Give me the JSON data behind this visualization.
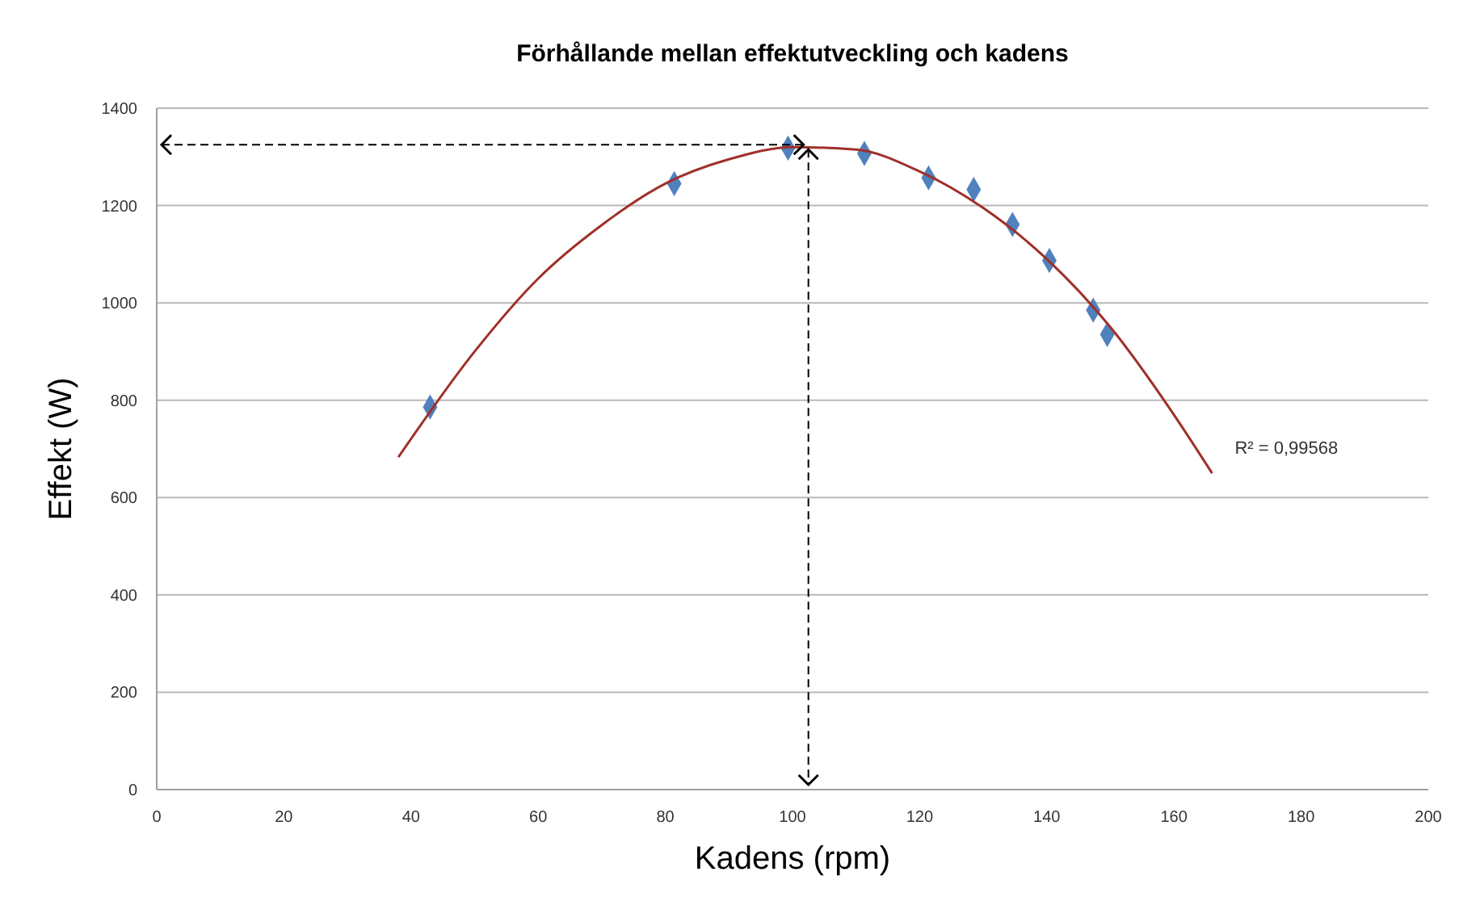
{
  "chart_data": {
    "type": "scatter",
    "title": "Förhållande mellan effektutveckling och kadens",
    "xlabel": "Kadens (rpm)",
    "ylabel": "Effekt (W)",
    "xlim": [
      0,
      200
    ],
    "xticks": [
      0,
      20,
      40,
      60,
      80,
      100,
      120,
      140,
      160,
      180,
      200
    ],
    "ylim": [
      0,
      1400
    ],
    "yticks": [
      0,
      200,
      400,
      600,
      800,
      1000,
      1200,
      1400
    ],
    "grid": "y",
    "series": [
      {
        "marker": "diamond",
        "color": "#4f81bd",
        "x": [
          43,
          81.4,
          99.3,
          111.3,
          121.4,
          128.5,
          134.6,
          140.4,
          147.3,
          149.5
        ],
        "values": [
          786,
          1245,
          1318,
          1307,
          1257,
          1233,
          1161,
          1087,
          985,
          935
        ]
      },
      {
        "type": "line",
        "marker": "none",
        "line_style": "solid",
        "color": "#a0302a",
        "x": [
          38,
          50,
          60,
          70,
          80,
          90,
          100,
          110,
          120,
          130,
          140,
          150,
          160,
          166
        ],
        "values": [
          683,
          900,
          1050,
          1160,
          1245,
          1295,
          1320,
          1315,
          1270,
          1195,
          1090,
          950,
          770,
          650
        ]
      }
    ],
    "ref_lines": [
      {
        "axis": "y",
        "value": 1325,
        "color": "#000000",
        "line_style": "dashed"
      },
      {
        "axis": "x",
        "value": 102.5,
        "color": "#000000",
        "line_style": "dashed"
      }
    ],
    "annotations": [
      {
        "text": "R² = 0,99568",
        "x": 166,
        "y": 650
      }
    ]
  }
}
